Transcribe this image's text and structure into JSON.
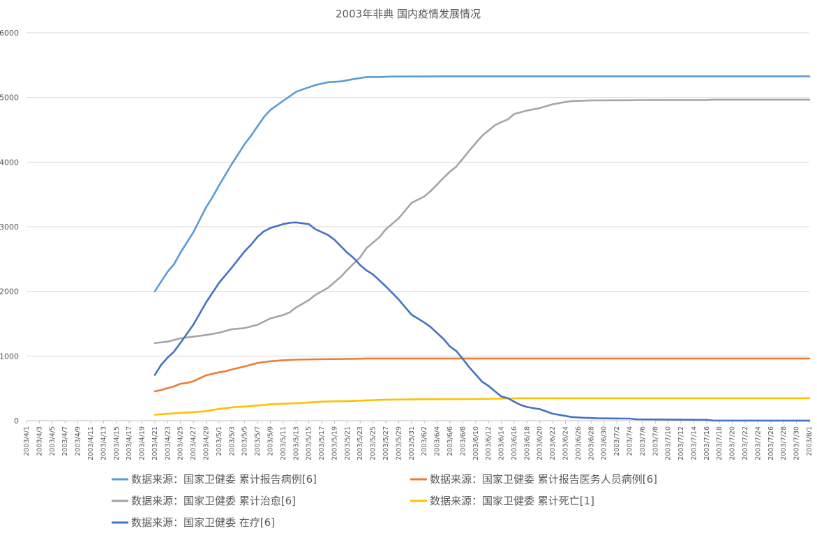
{
  "chart_data": {
    "type": "line",
    "title": "2003年非典 国内疫情发展情况",
    "xlabel": "",
    "ylabel": "",
    "ylim": [
      0,
      6000
    ],
    "yticks": [
      0,
      1000,
      2000,
      3000,
      4000,
      5000,
      6000
    ],
    "x_tick_labels": [
      "2003/4/1",
      "2003/4/3",
      "2003/4/5",
      "2003/4/7",
      "2003/4/9",
      "2003/4/11",
      "2003/4/13",
      "2003/4/15",
      "2003/4/17",
      "2003/4/19",
      "2003/4/21",
      "2003/4/23",
      "2003/4/25",
      "2003/4/27",
      "2003/4/29",
      "2003/5/1",
      "2003/5/3",
      "2003/5/5",
      "2003/5/7",
      "2003/5/9",
      "2003/5/11",
      "2003/5/13",
      "2003/5/15",
      "2003/5/17",
      "2003/5/19",
      "2003/5/21",
      "2003/5/23",
      "2003/5/25",
      "2003/5/27",
      "2003/5/29",
      "2003/5/31",
      "2003/6/2",
      "2003/6/4",
      "2003/6/6",
      "2003/6/8",
      "2003/6/10",
      "2003/6/12",
      "2003/6/14",
      "2003/6/16",
      "2003/6/18",
      "2003/6/20",
      "2003/6/22",
      "2003/6/24",
      "2003/6/26",
      "2003/6/28",
      "2003/6/30",
      "2003/7/2",
      "2003/7/4",
      "2003/7/6",
      "2003/7/8",
      "2003/7/10",
      "2003/7/12",
      "2003/7/14",
      "2003/7/16",
      "2003/7/18",
      "2003/7/20",
      "2003/7/22",
      "2003/7/24",
      "2003/7/26",
      "2003/7/28",
      "2003/7/30",
      "2003/8/1"
    ],
    "grid": true,
    "legend_position": "bottom",
    "series": [
      {
        "name": "数据来源：国家卫健委 累计报告病例[6]",
        "color": "#5b9bd5",
        "points": [
          [
            "2003/4/21",
            2001
          ],
          [
            "2003/4/23",
            2305
          ],
          [
            "2003/4/24",
            2422
          ],
          [
            "2003/4/25",
            2601
          ],
          [
            "2003/4/27",
            2914
          ],
          [
            "2003/4/29",
            3303
          ],
          [
            "2003/4/30",
            3460
          ],
          [
            "2003/5/1",
            3638
          ],
          [
            "2003/5/3",
            3971
          ],
          [
            "2003/5/5",
            4280
          ],
          [
            "2003/5/6",
            4409
          ],
          [
            "2003/5/8",
            4698
          ],
          [
            "2003/5/9",
            4805
          ],
          [
            "2003/5/11",
            4948
          ],
          [
            "2003/5/13",
            5086
          ],
          [
            "2003/5/14",
            5124
          ],
          [
            "2003/5/16",
            5191
          ],
          [
            "2003/5/18",
            5236
          ],
          [
            "2003/5/20",
            5248
          ],
          [
            "2003/5/22",
            5285
          ],
          [
            "2003/5/24",
            5316
          ],
          [
            "2003/5/26",
            5316
          ],
          [
            "2003/5/28",
            5323
          ],
          [
            "2003/6/3",
            5325
          ],
          [
            "2003/6/4",
            5327
          ],
          [
            "2003/8/1",
            5327
          ]
        ]
      },
      {
        "name": "数据来源：国家卫健委 累计报告医务人员病例[6]",
        "color": "#ed7d31",
        "points": [
          [
            "2003/4/21",
            453
          ],
          [
            "2003/4/22",
            475
          ],
          [
            "2003/4/23",
            505
          ],
          [
            "2003/4/24",
            532
          ],
          [
            "2003/4/25",
            571
          ],
          [
            "2003/4/26",
            585
          ],
          [
            "2003/4/27",
            609
          ],
          [
            "2003/4/28",
            657
          ],
          [
            "2003/4/29",
            703
          ],
          [
            "2003/5/1",
            748
          ],
          [
            "2003/5/2",
            765
          ],
          [
            "2003/5/3",
            792
          ],
          [
            "2003/5/5",
            840
          ],
          [
            "2003/5/7",
            892
          ],
          [
            "2003/5/9",
            919
          ],
          [
            "2003/5/11",
            935
          ],
          [
            "2003/5/13",
            944
          ],
          [
            "2003/5/16",
            950
          ],
          [
            "2003/5/23",
            958
          ],
          [
            "2003/5/24",
            961
          ],
          [
            "2003/6/1",
            962
          ],
          [
            "2003/8/1",
            962
          ]
        ]
      },
      {
        "name": "数据来源：国家卫健委 累计治愈[6]",
        "color": "#a5a5a5",
        "points": [
          [
            "2003/4/21",
            1201
          ],
          [
            "2003/4/23",
            1223
          ],
          [
            "2003/4/25",
            1275
          ],
          [
            "2003/4/27",
            1299
          ],
          [
            "2003/4/29",
            1325
          ],
          [
            "2003/5/1",
            1360
          ],
          [
            "2003/5/3",
            1415
          ],
          [
            "2003/5/5",
            1432
          ],
          [
            "2003/5/7",
            1484
          ],
          [
            "2003/5/9",
            1581
          ],
          [
            "2003/5/11",
            1635
          ],
          [
            "2003/5/12",
            1675
          ],
          [
            "2003/5/13",
            1751
          ],
          [
            "2003/5/15",
            1865
          ],
          [
            "2003/5/16",
            1944
          ],
          [
            "2003/5/18",
            2056
          ],
          [
            "2003/5/19",
            2142
          ],
          [
            "2003/5/20",
            2225
          ],
          [
            "2003/5/21",
            2334
          ],
          [
            "2003/5/23",
            2527
          ],
          [
            "2003/5/24",
            2671
          ],
          [
            "2003/5/26",
            2838
          ],
          [
            "2003/5/27",
            2961
          ],
          [
            "2003/5/29",
            3131
          ],
          [
            "2003/5/31",
            3368
          ],
          [
            "2003/6/2",
            3469
          ],
          [
            "2003/6/3",
            3552
          ],
          [
            "2003/6/5",
            3758
          ],
          [
            "2003/6/6",
            3852
          ],
          [
            "2003/6/7",
            3932
          ],
          [
            "2003/6/9",
            4177
          ],
          [
            "2003/6/11",
            4407
          ],
          [
            "2003/6/13",
            4570
          ],
          [
            "2003/6/14",
            4620
          ],
          [
            "2003/6/15",
            4660
          ],
          [
            "2003/6/16",
            4744
          ],
          [
            "2003/6/18",
            4797
          ],
          [
            "2003/6/20",
            4836
          ],
          [
            "2003/6/22",
            4894
          ],
          [
            "2003/6/24",
            4930
          ],
          [
            "2003/6/25",
            4943
          ],
          [
            "2003/6/28",
            4954
          ],
          [
            "2003/7/4",
            4955
          ],
          [
            "2003/7/5",
            4959
          ],
          [
            "2003/7/16",
            4961
          ],
          [
            "2003/7/17",
            4965
          ],
          [
            "2003/8/1",
            4965
          ]
        ]
      },
      {
        "name": "数据来源：国家卫健委 累计死亡[1]",
        "color": "#ffc000",
        "points": [
          [
            "2003/4/21",
            92
          ],
          [
            "2003/4/23",
            106
          ],
          [
            "2003/4/25",
            122
          ],
          [
            "2003/4/27",
            131
          ],
          [
            "2003/4/29",
            148
          ],
          [
            "2003/5/1",
            181
          ],
          [
            "2003/5/3",
            206
          ],
          [
            "2003/5/5",
            219
          ],
          [
            "2003/5/7",
            235
          ],
          [
            "2003/5/9",
            252
          ],
          [
            "2003/5/11",
            262
          ],
          [
            "2003/5/13",
            271
          ],
          [
            "2003/5/15",
            282
          ],
          [
            "2003/5/17",
            294
          ],
          [
            "2003/5/19",
            300
          ],
          [
            "2003/5/21",
            303
          ],
          [
            "2003/5/23",
            310
          ],
          [
            "2003/5/25",
            317
          ],
          [
            "2003/5/27",
            325
          ],
          [
            "2003/5/29",
            327
          ],
          [
            "2003/5/31",
            330
          ],
          [
            "2003/6/5",
            333
          ],
          [
            "2003/6/10",
            334
          ],
          [
            "2003/6/16",
            345
          ],
          [
            "2003/6/18",
            347
          ],
          [
            "2003/8/1",
            348
          ]
        ]
      },
      {
        "name": "数据来源：国家卫健委 在疗[6]",
        "color": "#4472c4",
        "points": [
          [
            "2003/4/21",
            708
          ],
          [
            "2003/4/22",
            866
          ],
          [
            "2003/4/23",
            976
          ],
          [
            "2003/4/24",
            1069
          ],
          [
            "2003/4/25",
            1204
          ],
          [
            "2003/4/27",
            1484
          ],
          [
            "2003/4/29",
            1830
          ],
          [
            "2003/5/1",
            2131
          ],
          [
            "2003/5/3",
            2369
          ],
          [
            "2003/5/5",
            2620
          ],
          [
            "2003/5/6",
            2723
          ],
          [
            "2003/5/7",
            2842
          ],
          [
            "2003/5/8",
            2930
          ],
          [
            "2003/5/9",
            2979
          ],
          [
            "2003/5/11",
            3040
          ],
          [
            "2003/5/12",
            3062
          ],
          [
            "2003/5/13",
            3067
          ],
          [
            "2003/5/15",
            3040
          ],
          [
            "2003/5/16",
            2962
          ],
          [
            "2003/5/18",
            2873
          ],
          [
            "2003/5/19",
            2798
          ],
          [
            "2003/5/21",
            2598
          ],
          [
            "2003/5/22",
            2515
          ],
          [
            "2003/5/23",
            2406
          ],
          [
            "2003/5/24",
            2324
          ],
          [
            "2003/5/25",
            2263
          ],
          [
            "2003/5/27",
            2077
          ],
          [
            "2003/5/29",
            1874
          ],
          [
            "2003/5/31",
            1640
          ],
          [
            "2003/6/2",
            1518
          ],
          [
            "2003/6/3",
            1447
          ],
          [
            "2003/6/5",
            1263
          ],
          [
            "2003/6/6",
            1147
          ],
          [
            "2003/6/7",
            1076
          ],
          [
            "2003/6/8",
            954
          ],
          [
            "2003/6/9",
            827
          ],
          [
            "2003/6/11",
            603
          ],
          [
            "2003/6/12",
            538
          ],
          [
            "2003/6/13",
            454
          ],
          [
            "2003/6/14",
            375
          ],
          [
            "2003/6/15",
            349
          ],
          [
            "2003/6/16",
            293
          ],
          [
            "2003/6/17",
            244
          ],
          [
            "2003/6/18",
            212
          ],
          [
            "2003/6/20",
            178
          ],
          [
            "2003/6/22",
            108
          ],
          [
            "2003/6/24",
            73
          ],
          [
            "2003/6/25",
            56
          ],
          [
            "2003/6/27",
            44
          ],
          [
            "2003/6/29",
            37
          ],
          [
            "2003/7/4",
            32
          ],
          [
            "2003/7/5",
            22
          ],
          [
            "2003/7/16",
            13
          ],
          [
            "2003/7/17",
            2
          ],
          [
            "2003/8/1",
            1
          ]
        ]
      }
    ]
  }
}
